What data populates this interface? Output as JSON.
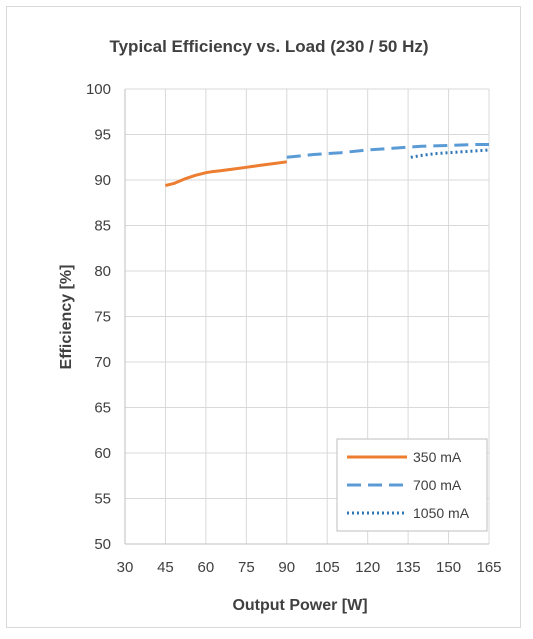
{
  "chart_data": {
    "type": "line",
    "title": "Typical Efficiency vs. Load (230 / 50 Hz)",
    "xlabel": "Output Power [W]",
    "ylabel": "Efficiency [%]",
    "xlim": [
      30,
      165
    ],
    "ylim": [
      50,
      100
    ],
    "xticks": [
      30,
      45,
      60,
      75,
      90,
      105,
      120,
      135,
      150,
      165
    ],
    "yticks": [
      50,
      55,
      60,
      65,
      70,
      75,
      80,
      85,
      90,
      95,
      100
    ],
    "grid": true,
    "legend_position": "bottom-right",
    "series": [
      {
        "name": "350 mA",
        "color": "#ed7d31",
        "style": "solid",
        "x": [
          45,
          48,
          52,
          56,
          60,
          62,
          65,
          70,
          75,
          80,
          85,
          90
        ],
        "y": [
          89.4,
          89.6,
          90.1,
          90.5,
          90.8,
          90.9,
          91.0,
          91.2,
          91.4,
          91.6,
          91.8,
          92.0
        ]
      },
      {
        "name": "700 mA",
        "color": "#5b9bd5",
        "style": "dashed",
        "x": [
          90,
          100,
          110,
          120,
          130,
          140,
          150,
          160,
          165
        ],
        "y": [
          92.5,
          92.8,
          93.0,
          93.3,
          93.5,
          93.7,
          93.8,
          93.9,
          93.9
        ]
      },
      {
        "name": "1050 mA",
        "color": "#2e75b6",
        "style": "dotted",
        "x": [
          136,
          140,
          145,
          150,
          155,
          160,
          165
        ],
        "y": [
          92.5,
          92.7,
          92.9,
          93.0,
          93.1,
          93.2,
          93.3
        ]
      }
    ]
  }
}
